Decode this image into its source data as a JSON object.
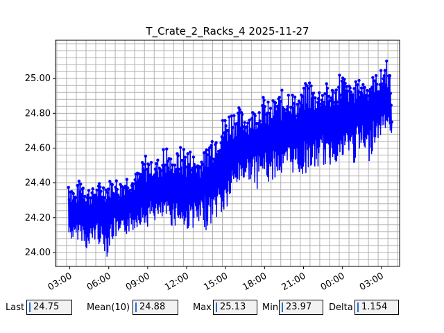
{
  "chart_data": {
    "type": "line",
    "title": "T_Crate_2_Racks_4 2025-11-27",
    "xlabel": "",
    "ylabel": "",
    "x_tick_labels": [
      "03:00",
      "06:00",
      "09:00",
      "12:00",
      "15:00",
      "18:00",
      "21:00",
      "00:00",
      "03:00"
    ],
    "x_tick_hours": [
      3,
      6,
      9,
      12,
      15,
      18,
      21,
      24,
      27
    ],
    "xlim_hours": [
      1.9,
      28.4
    ],
    "ylim": [
      23.92,
      25.22
    ],
    "y_ticks": [
      "24.00",
      "24.20",
      "24.40",
      "24.60",
      "24.80",
      "25.00"
    ],
    "y_tick_values": [
      24.0,
      24.2,
      24.4,
      24.6,
      24.8,
      25.0
    ],
    "grid": true,
    "series_color": "#0000ff",
    "series": [
      {
        "x_hours": [
          2.9,
          3.4,
          3.9,
          4.4,
          4.9,
          5.4,
          5.9,
          6.4,
          6.9,
          7.4,
          7.9,
          8.4,
          8.9,
          9.4,
          9.9,
          10.4,
          10.9,
          11.4,
          11.9,
          12.4,
          12.9,
          13.4,
          13.9,
          14.4,
          14.9,
          15.4,
          15.9,
          16.4,
          16.9,
          17.4,
          17.9,
          18.4,
          18.9,
          19.4,
          19.9,
          20.4,
          20.9,
          21.4,
          21.9,
          22.4,
          22.9,
          23.4,
          23.9,
          24.4,
          24.9,
          25.4,
          25.9,
          26.4,
          26.9,
          27.4,
          27.8
        ],
        "values": [
          24.22,
          24.18,
          24.25,
          24.15,
          24.28,
          24.2,
          24.24,
          24.26,
          24.22,
          24.3,
          24.28,
          24.32,
          24.3,
          24.38,
          24.35,
          24.33,
          24.4,
          24.36,
          24.3,
          24.38,
          24.34,
          24.42,
          24.4,
          24.48,
          24.5,
          24.55,
          24.58,
          24.62,
          24.6,
          24.64,
          24.66,
          24.6,
          24.7,
          24.65,
          24.72,
          24.68,
          24.74,
          24.7,
          24.72,
          24.76,
          24.7,
          24.78,
          24.74,
          24.8,
          24.78,
          24.84,
          24.8,
          24.86,
          24.82,
          24.88,
          24.75
        ],
        "lows": [
          24.07,
          24.07,
          24.07,
          24.0,
          24.05,
          24.04,
          23.97,
          24.08,
          24.06,
          24.1,
          24.12,
          24.16,
          24.14,
          24.18,
          24.16,
          24.2,
          24.14,
          24.16,
          24.12,
          24.14,
          24.13,
          24.12,
          24.16,
          24.2,
          24.19,
          24.3,
          24.38,
          24.4,
          24.42,
          24.36,
          24.44,
          24.38,
          24.44,
          24.42,
          24.44,
          24.46,
          24.42,
          24.48,
          24.46,
          24.5,
          24.48,
          24.52,
          24.5,
          24.56,
          24.5,
          24.56,
          24.48,
          24.6,
          24.66,
          24.72,
          24.68
        ],
        "highs": [
          24.46,
          24.36,
          24.45,
          24.4,
          24.36,
          24.42,
          24.41,
          24.44,
          24.42,
          24.45,
          24.45,
          24.48,
          24.59,
          24.5,
          24.56,
          24.64,
          24.52,
          24.6,
          24.64,
          24.58,
          24.56,
          24.58,
          24.7,
          24.72,
          24.8,
          24.83,
          24.85,
          24.8,
          24.82,
          24.84,
          24.9,
          24.86,
          24.9,
          24.94,
          24.96,
          24.9,
          24.92,
          25.03,
          24.94,
          24.96,
          24.98,
          24.95,
          25.08,
          24.96,
          24.98,
          25.0,
          24.98,
          25.02,
          25.04,
          25.13,
          24.96
        ]
      }
    ]
  },
  "stats": {
    "last": {
      "label": "Last",
      "value": "24.75"
    },
    "mean": {
      "label": "Mean(10)",
      "value": "24.88"
    },
    "max": {
      "label": "Max",
      "value": "25.13"
    },
    "min": {
      "label": "Min",
      "value": "23.97"
    },
    "delta": {
      "label": "Delta",
      "value": "1.154"
    }
  }
}
